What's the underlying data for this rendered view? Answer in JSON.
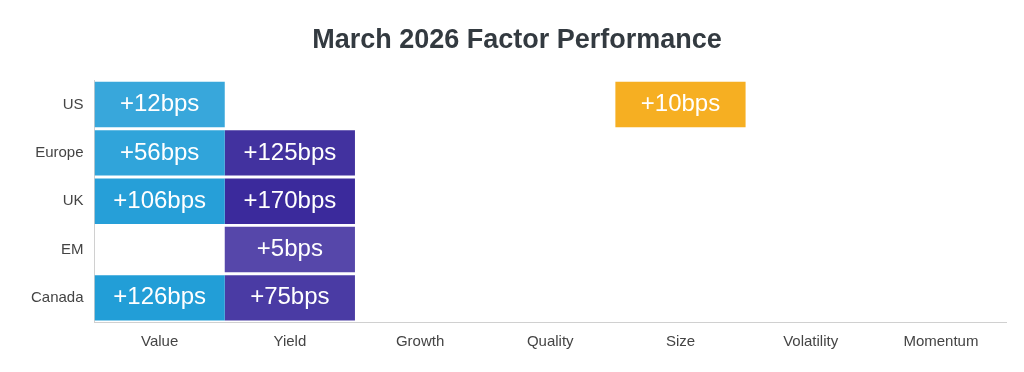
{
  "chart_data": {
    "type": "heatmap",
    "title": "March 2026 Factor Performance",
    "categories": [
      "Value",
      "Yield",
      "Growth",
      "Quality",
      "Size",
      "Volatility",
      "Momentum"
    ],
    "y_categories": [
      "US",
      "Europe",
      "UK",
      "EM",
      "Canada"
    ],
    "cells": [
      [
        12,
        null,
        null,
        null,
        10,
        null,
        null
      ],
      [
        56,
        125,
        null,
        null,
        null,
        null,
        null
      ],
      [
        106,
        170,
        null,
        null,
        null,
        null,
        null
      ],
      [
        null,
        5,
        null,
        null,
        null,
        null,
        null
      ],
      [
        126,
        75,
        null,
        null,
        null,
        null,
        null
      ]
    ],
    "cell_labels": [
      [
        "+12bps",
        null,
        null,
        null,
        "+10bps",
        null,
        null
      ],
      [
        "+56bps",
        "+125bps",
        null,
        null,
        null,
        null,
        null
      ],
      [
        "+106bps",
        "+170bps",
        null,
        null,
        null,
        null,
        null
      ],
      [
        null,
        "+5bps",
        null,
        null,
        null,
        null,
        null
      ],
      [
        "+126bps",
        "+75bps",
        null,
        null,
        null,
        null,
        null
      ]
    ],
    "colors": [
      "#1a9ad6",
      "#3b2a9c",
      "#8a8a8a",
      "#8a8a8a",
      "#f5a300",
      "#8a8a8a",
      "#8a8a8a"
    ]
  }
}
